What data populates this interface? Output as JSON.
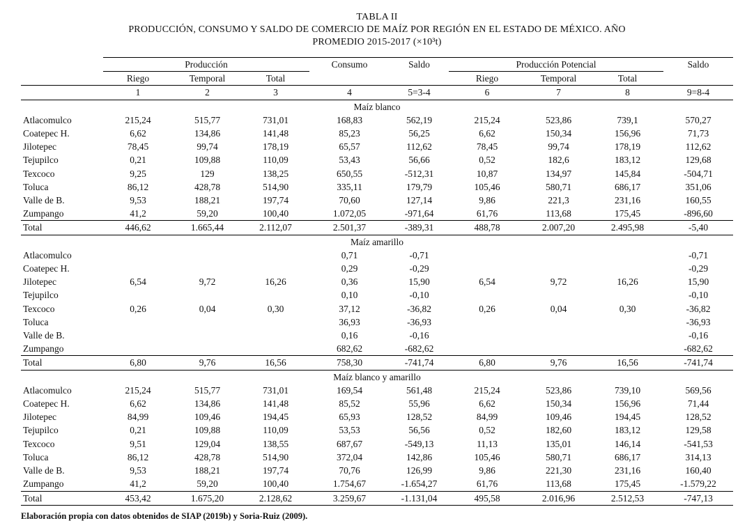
{
  "title": {
    "label": "TABLA II",
    "caption_line1": "PRODUCCIÓN, CONSUMO Y SALDO DE COMERCIO DE MAÍZ POR REGIÓN EN EL ESTADO DE MÉXICO. AÑO",
    "caption_line2": "PROMEDIO 2015-2017 (×10³t)"
  },
  "header": {
    "groups": {
      "produccion": "Producción",
      "consumo": "Consumo",
      "saldo": "Saldo",
      "produccion_potencial": "Producción Potencial",
      "saldo_2": "Saldo"
    },
    "sub": [
      "Riego",
      "Temporal",
      "Total",
      "Riego",
      "Temporal",
      "Total"
    ],
    "numbers": [
      "1",
      "2",
      "3",
      "4",
      "5=3-4",
      "6",
      "7",
      "8",
      "9=8-4"
    ]
  },
  "sections": [
    {
      "title": "Maíz blanco",
      "rows": [
        [
          "Atlacomulco",
          "215,24",
          "515,77",
          "731,01",
          "168,83",
          "562,19",
          "215,24",
          "523,86",
          "739,1",
          "570,27"
        ],
        [
          "Coatepec H.",
          "6,62",
          "134,86",
          "141,48",
          "85,23",
          "56,25",
          "6,62",
          "150,34",
          "156,96",
          "71,73"
        ],
        [
          "Jilotepec",
          "78,45",
          "99,74",
          "178,19",
          "65,57",
          "112,62",
          "78,45",
          "99,74",
          "178,19",
          "112,62"
        ],
        [
          "Tejupilco",
          "0,21",
          "109,88",
          "110,09",
          "53,43",
          "56,66",
          "0,52",
          "182,6",
          "183,12",
          "129,68"
        ],
        [
          "Texcoco",
          "9,25",
          "129",
          "138,25",
          "650,55",
          "-512,31",
          "10,87",
          "134,97",
          "145,84",
          "-504,71"
        ],
        [
          "Toluca",
          "86,12",
          "428,78",
          "514,90",
          "335,11",
          "179,79",
          "105,46",
          "580,71",
          "686,17",
          "351,06"
        ],
        [
          "Valle de B.",
          "9,53",
          "188,21",
          "197,74",
          "70,60",
          "127,14",
          "9,86",
          "221,3",
          "231,16",
          "160,55"
        ],
        [
          "Zumpango",
          "41,2",
          "59,20",
          "100,40",
          "1.072,05",
          "-971,64",
          "61,76",
          "113,68",
          "175,45",
          "-896,60"
        ],
        [
          "Total",
          "446,62",
          "1.665,44",
          "2.112,07",
          "2.501,37",
          "-389,31",
          "488,78",
          "2.007,20",
          "2.495,98",
          "-5,40"
        ]
      ]
    },
    {
      "title": "Maíz amarillo",
      "rows": [
        [
          "Atlacomulco",
          "",
          "",
          "",
          "0,71",
          "-0,71",
          "",
          "",
          "",
          "-0,71"
        ],
        [
          "Coatepec H.",
          "",
          "",
          "",
          "0,29",
          "-0,29",
          "",
          "",
          "",
          "-0,29"
        ],
        [
          "Jilotepec",
          "6,54",
          "9,72",
          "16,26",
          "0,36",
          "15,90",
          "6,54",
          "9,72",
          "16,26",
          "15,90"
        ],
        [
          "Tejupilco",
          "",
          "",
          "",
          "0,10",
          "-0,10",
          "",
          "",
          "",
          "-0,10"
        ],
        [
          "Texcoco",
          "0,26",
          "0,04",
          "0,30",
          "37,12",
          "-36,82",
          "0,26",
          "0,04",
          "0,30",
          "-36,82"
        ],
        [
          "Toluca",
          "",
          "",
          "",
          "36,93",
          "-36,93",
          "",
          "",
          "",
          "-36,93"
        ],
        [
          "Valle de B.",
          "",
          "",
          "",
          "0,16",
          "-0,16",
          "",
          "",
          "",
          "-0,16"
        ],
        [
          "Zumpango",
          "",
          "",
          "",
          "682,62",
          "-682,62",
          "",
          "",
          "",
          "-682,62"
        ],
        [
          "Total",
          "6,80",
          "9,76",
          "16,56",
          "758,30",
          "-741,74",
          "6,80",
          "9,76",
          "16,56",
          "-741,74"
        ]
      ]
    },
    {
      "title": "Maíz blanco y amarillo",
      "rows": [
        [
          "Atlacomulco",
          "215,24",
          "515,77",
          "731,01",
          "169,54",
          "561,48",
          "215,24",
          "523,86",
          "739,10",
          "569,56"
        ],
        [
          "Coatepec H.",
          "6,62",
          "134,86",
          "141,48",
          "85,52",
          "55,96",
          "6,62",
          "150,34",
          "156,96",
          "71,44"
        ],
        [
          "Jilotepec",
          "84,99",
          "109,46",
          "194,45",
          "65,93",
          "128,52",
          "84,99",
          "109,46",
          "194,45",
          "128,52"
        ],
        [
          "Tejupilco",
          "0,21",
          "109,88",
          "110,09",
          "53,53",
          "56,56",
          "0,52",
          "182,60",
          "183,12",
          "129,58"
        ],
        [
          "Texcoco",
          "9,51",
          "129,04",
          "138,55",
          "687,67",
          "-549,13",
          "11,13",
          "135,01",
          "146,14",
          "-541,53"
        ],
        [
          "Toluca",
          "86,12",
          "428,78",
          "514,90",
          "372,04",
          "142,86",
          "105,46",
          "580,71",
          "686,17",
          "314,13"
        ],
        [
          "Valle de B.",
          "9,53",
          "188,21",
          "197,74",
          "70,76",
          "126,99",
          "9,86",
          "221,30",
          "231,16",
          "160,40"
        ],
        [
          "Zumpango",
          "41,2",
          "59,20",
          "100,40",
          "1.754,67",
          "-1.654,27",
          "61,76",
          "113,68",
          "175,45",
          "-1.579,22"
        ],
        [
          "Total",
          "453,42",
          "1.675,20",
          "2.128,62",
          "3.259,67",
          "-1.131,04",
          "495,58",
          "2.016,96",
          "2.512,53",
          "-747,13"
        ]
      ]
    }
  ],
  "footer": {
    "note": "Elaboración propia con datos obtenidos de SIAP (2019b) y Soria-Ruiz (2009)."
  }
}
